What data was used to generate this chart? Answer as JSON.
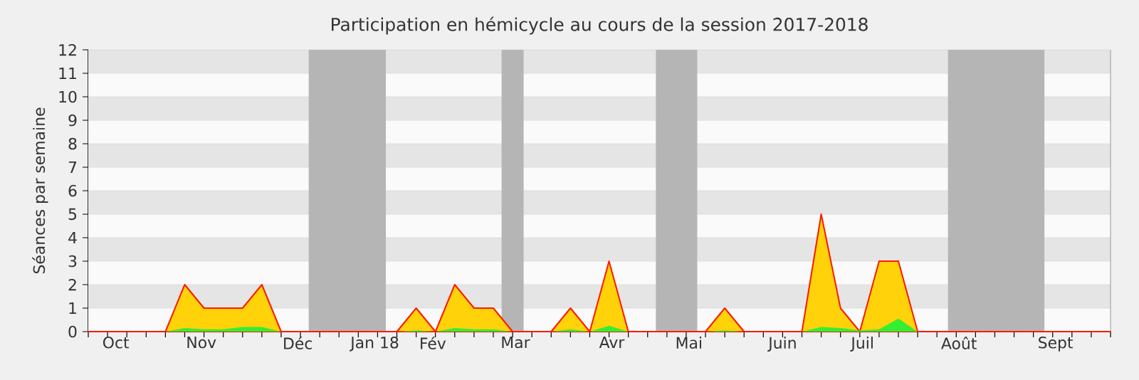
{
  "chart_data": {
    "type": "area",
    "title": "Participation en hémicycle au cours de la session 2017-2018",
    "ylabel": "Séances par semaine",
    "x": [
      "2017-10-02",
      "2017-10-09",
      "2017-10-16",
      "2017-10-23",
      "2017-10-30",
      "2017-11-06",
      "2017-11-13",
      "2017-11-20",
      "2017-11-27",
      "2017-12-04",
      "2017-12-11",
      "2017-12-18",
      "2017-12-25",
      "2018-01-01",
      "2018-01-08",
      "2018-01-15",
      "2018-01-22",
      "2018-01-29",
      "2018-02-05",
      "2018-02-12",
      "2018-02-19",
      "2018-02-26",
      "2018-03-05",
      "2018-03-12",
      "2018-03-19",
      "2018-03-26",
      "2018-04-02",
      "2018-04-09",
      "2018-04-16",
      "2018-04-23",
      "2018-04-30",
      "2018-05-07",
      "2018-05-14",
      "2018-05-21",
      "2018-05-28",
      "2018-06-04",
      "2018-06-11",
      "2018-06-18",
      "2018-06-25",
      "2018-07-02",
      "2018-07-09",
      "2018-07-16",
      "2018-07-23",
      "2018-07-30",
      "2018-08-06",
      "2018-08-13",
      "2018-08-20",
      "2018-08-27",
      "2018-09-03",
      "2018-09-10",
      "2018-09-17",
      "2018-09-24",
      "2018-10-01",
      "2018-10-08"
    ],
    "series": [
      {
        "color": "#ffd20a",
        "values": [
          0,
          0,
          0,
          0,
          0,
          2,
          1,
          1,
          1,
          2,
          0,
          0,
          0,
          0,
          0,
          0,
          0,
          1,
          0,
          2,
          1,
          1,
          0,
          0,
          0,
          1,
          0,
          3,
          0,
          0,
          0,
          0,
          0,
          1,
          0,
          0,
          0,
          0,
          5,
          1,
          0,
          3,
          3,
          0,
          0,
          0,
          0,
          0,
          0,
          0,
          0,
          0,
          0,
          0
        ]
      },
      {
        "color": "#33ee33",
        "values": [
          0,
          0,
          0,
          0,
          0,
          0.15,
          0.1,
          0.1,
          0.2,
          0.2,
          0,
          0,
          0,
          0,
          0,
          0,
          0,
          0.05,
          0,
          0.15,
          0.1,
          0.1,
          0,
          0,
          0,
          0.1,
          0,
          0.25,
          0,
          0,
          0,
          0,
          0,
          0.05,
          0,
          0,
          0,
          0,
          0.2,
          0.15,
          0.05,
          0.1,
          0.55,
          0,
          0,
          0,
          0,
          0,
          0,
          0,
          0,
          0,
          0,
          0
        ]
      }
    ],
    "xlim": [
      "2017-10-02",
      "2018-10-08"
    ],
    "ylim": [
      0,
      12
    ],
    "yticks": [
      0,
      1,
      2,
      3,
      4,
      5,
      6,
      7,
      8,
      9,
      10,
      11,
      12
    ],
    "xticks": [
      {
        "value": "2017-10-02",
        "label": null
      },
      {
        "value": "2017-10-09",
        "label": null
      },
      {
        "value": "2017-10-16",
        "label": null
      },
      {
        "value": "2017-10-23",
        "label": null
      },
      {
        "value": "2017-10-30",
        "label": null
      },
      {
        "value": "2017-11-06",
        "label": null
      },
      {
        "value": "2017-11-13",
        "label": null
      },
      {
        "value": "2017-11-20",
        "label": null
      },
      {
        "value": "2017-11-27",
        "label": null
      },
      {
        "value": "2017-12-04",
        "label": null
      },
      {
        "value": "2017-12-11",
        "label": null
      },
      {
        "value": "2017-12-18",
        "label": null
      },
      {
        "value": "2017-12-25",
        "label": null
      },
      {
        "value": "2018-01-01",
        "label": null
      },
      {
        "value": "2018-01-08",
        "label": null
      },
      {
        "value": "2018-01-15",
        "label": null
      },
      {
        "value": "2018-01-22",
        "label": null
      },
      {
        "value": "2018-01-29",
        "label": null
      },
      {
        "value": "2018-02-05",
        "label": null
      },
      {
        "value": "2018-02-12",
        "label": null
      },
      {
        "value": "2018-02-19",
        "label": null
      },
      {
        "value": "2018-02-26",
        "label": null
      },
      {
        "value": "2018-03-05",
        "label": null
      },
      {
        "value": "2018-03-12",
        "label": null
      },
      {
        "value": "2018-03-19",
        "label": null
      },
      {
        "value": "2018-03-26",
        "label": null
      },
      {
        "value": "2018-04-02",
        "label": null
      },
      {
        "value": "2018-04-09",
        "label": null
      },
      {
        "value": "2018-04-16",
        "label": null
      },
      {
        "value": "2018-04-23",
        "label": null
      },
      {
        "value": "2018-04-30",
        "label": null
      },
      {
        "value": "2018-05-07",
        "label": null
      },
      {
        "value": "2018-05-14",
        "label": null
      },
      {
        "value": "2018-05-21",
        "label": null
      },
      {
        "value": "2018-05-28",
        "label": null
      },
      {
        "value": "2018-06-04",
        "label": null
      },
      {
        "value": "2018-06-11",
        "label": null
      },
      {
        "value": "2018-06-18",
        "label": null
      },
      {
        "value": "2018-06-25",
        "label": null
      },
      {
        "value": "2018-07-02",
        "label": null
      },
      {
        "value": "2018-07-09",
        "label": null
      },
      {
        "value": "2018-07-16",
        "label": null
      },
      {
        "value": "2018-07-23",
        "label": null
      },
      {
        "value": "2018-07-30",
        "label": null
      },
      {
        "value": "2018-08-06",
        "label": null
      },
      {
        "value": "2018-08-13",
        "label": null
      },
      {
        "value": "2018-08-20",
        "label": null
      },
      {
        "value": "2018-08-27",
        "label": null
      },
      {
        "value": "2018-09-03",
        "label": null
      },
      {
        "value": "2018-09-10",
        "label": null
      },
      {
        "value": "2018-09-17",
        "label": null
      },
      {
        "value": "2018-09-24",
        "label": null
      },
      {
        "value": "2018-10-01",
        "label": null
      },
      {
        "value": "2018-10-08",
        "label": null
      },
      {
        "value": "2017-10-12",
        "label": "Oct"
      },
      {
        "value": "2017-11-12",
        "label": "Nov"
      },
      {
        "value": "2017-12-17",
        "label": "Déc"
      },
      {
        "value": "2018-01-14",
        "label": "Jan 18"
      },
      {
        "value": "2018-02-04",
        "label": "Fév"
      },
      {
        "value": "2018-03-06",
        "label": "Mar"
      },
      {
        "value": "2018-04-10",
        "label": "Avr"
      },
      {
        "value": "2018-05-08",
        "label": "Mai"
      },
      {
        "value": "2018-06-11",
        "label": "Juin"
      },
      {
        "value": "2018-07-10",
        "label": "Juil"
      },
      {
        "value": "2018-08-14",
        "label": "Août"
      },
      {
        "value": "2018-09-18",
        "label": "Sept"
      }
    ],
    "bands": [
      {
        "axis": "x",
        "from": "2017-12-21",
        "to": "2018-01-18",
        "color": "#b5b5b5"
      },
      {
        "axis": "x",
        "from": "2018-03-01",
        "to": "2018-03-09",
        "color": "#b5b5b5"
      },
      {
        "axis": "x",
        "from": "2018-04-26",
        "to": "2018-05-11",
        "color": "#b5b5b5"
      },
      {
        "axis": "x",
        "from": "2018-08-10",
        "to": "2018-09-14",
        "color": "#b5b5b5"
      }
    ],
    "grid": "y"
  }
}
